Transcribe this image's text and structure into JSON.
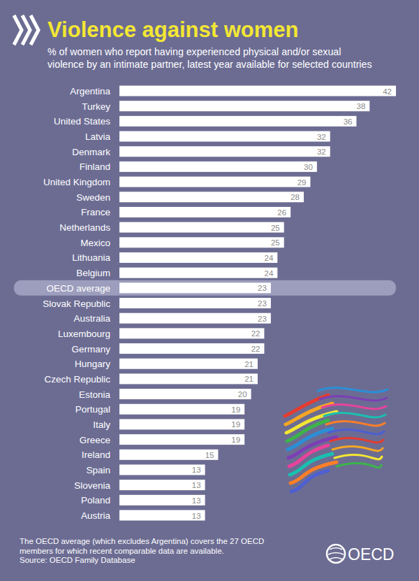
{
  "chart_data": {
    "type": "bar",
    "orientation": "horizontal",
    "title": "Violence against women",
    "subtitle": [
      "% of women who report having experienced physical and/or sexual",
      "violence by an intimate partner, latest year available for selected countries"
    ],
    "categories": [
      "Argentina",
      "Turkey",
      "United States",
      "Latvia",
      "Denmark",
      "Finland",
      "United Kingdom",
      "Sweden",
      "France",
      "Netherlands",
      "Mexico",
      "Lithuania",
      "Belgium",
      "OECD average",
      "Slovak Republic",
      "Australia",
      "Luxembourg",
      "Germany",
      "Hungary",
      "Czech Republic",
      "Estonia",
      "Portugal",
      "Italy",
      "Greece",
      "Ireland",
      "Spain",
      "Slovenia",
      "Poland",
      "Austria"
    ],
    "values": [
      42,
      38,
      36,
      32,
      32,
      30,
      29,
      28,
      26,
      25,
      25,
      24,
      24,
      23,
      23,
      23,
      22,
      22,
      21,
      21,
      20,
      19,
      19,
      19,
      15,
      13,
      13,
      13,
      13
    ],
    "color": "#ffffff",
    "xlim": [
      0,
      42
    ],
    "grid": false,
    "data_labels": true,
    "tick_labels": "y",
    "note": [
      "The OECD average (which excludes Argentina) covers the 27 OECD",
      "members for which recent comparable data are available."
    ],
    "source": "Source: OECD Family Database",
    "logo": "OECD"
  }
}
